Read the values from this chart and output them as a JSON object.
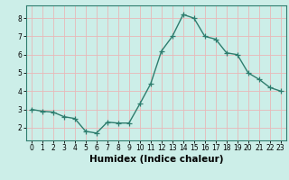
{
  "x": [
    0,
    1,
    2,
    3,
    4,
    5,
    6,
    7,
    8,
    9,
    10,
    11,
    12,
    13,
    14,
    15,
    16,
    17,
    18,
    19,
    20,
    21,
    22,
    23
  ],
  "y": [
    3.0,
    2.9,
    2.85,
    2.6,
    2.5,
    1.8,
    1.7,
    2.3,
    2.25,
    2.25,
    3.3,
    4.4,
    6.2,
    7.0,
    8.2,
    8.0,
    7.0,
    6.85,
    6.1,
    6.0,
    5.0,
    4.65,
    4.2,
    4.0
  ],
  "line_color": "#2e7d6e",
  "marker": "+",
  "marker_size": 4,
  "linewidth": 1.0,
  "xlabel": "Humidex (Indice chaleur)",
  "xlim": [
    -0.5,
    23.5
  ],
  "ylim": [
    1.3,
    8.7
  ],
  "yticks": [
    2,
    3,
    4,
    5,
    6,
    7,
    8
  ],
  "xticks": [
    0,
    1,
    2,
    3,
    4,
    5,
    6,
    7,
    8,
    9,
    10,
    11,
    12,
    13,
    14,
    15,
    16,
    17,
    18,
    19,
    20,
    21,
    22,
    23
  ],
  "bg_color": "#cceee8",
  "grid_color": "#e8b8b8",
  "tick_label_fontsize": 5.5,
  "xlabel_fontsize": 7.5,
  "xlabel_fontweight": "bold"
}
